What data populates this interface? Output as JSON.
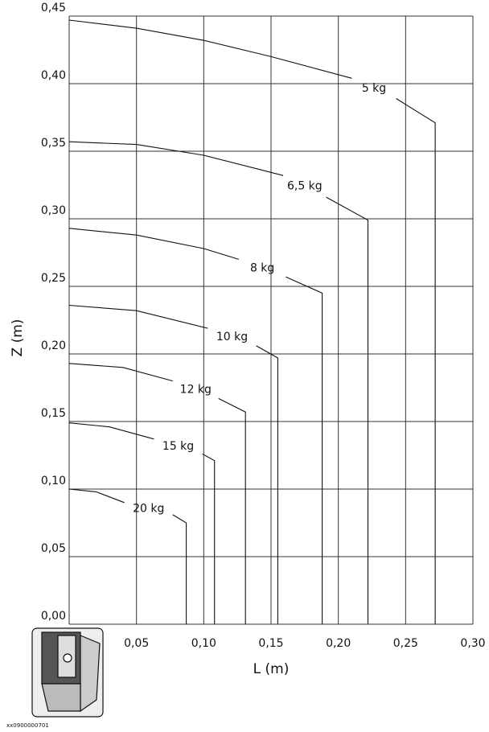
{
  "chart_data": {
    "type": "line",
    "x_label": "L (m)",
    "y_label": "Z (m)",
    "caption": "xx0900000701",
    "xlim": [
      0,
      0.3
    ],
    "ylim": [
      0,
      0.45
    ],
    "grid": true,
    "xticks": [
      {
        "value": 0.05,
        "label": "0,05"
      },
      {
        "value": 0.1,
        "label": "0,10"
      },
      {
        "value": 0.15,
        "label": "0,15"
      },
      {
        "value": 0.2,
        "label": "0,20"
      },
      {
        "value": 0.25,
        "label": "0,25"
      },
      {
        "value": 0.3,
        "label": "0,30"
      }
    ],
    "yticks": [
      {
        "value": 0,
        "label": "0,00"
      },
      {
        "value": 0.05,
        "label": "0,05"
      },
      {
        "value": 0.1,
        "label": "0,10"
      },
      {
        "value": 0.15,
        "label": "0,15"
      },
      {
        "value": 0.2,
        "label": "0,20"
      },
      {
        "value": 0.25,
        "label": "0,25"
      },
      {
        "value": 0.3,
        "label": "0,30"
      },
      {
        "value": 0.35,
        "label": "0,35"
      },
      {
        "value": 0.4,
        "label": "0,40"
      },
      {
        "value": 0.45,
        "label": "0,45"
      }
    ],
    "series": [
      {
        "name": "5 kg",
        "color": "#111111",
        "x": [
          0,
          0.05,
          0.1,
          0.15,
          0.21,
          null,
          0.243,
          0.272,
          0.272
        ],
        "values": [
          0.447,
          0.441,
          0.432,
          0.42,
          0.404,
          null,
          0.389,
          0.371,
          0
        ]
      },
      {
        "name": "6,5 kg",
        "color": "#111111",
        "x": [
          0,
          0.05,
          0.1,
          0.159,
          null,
          0.191,
          0.222,
          0.222
        ],
        "values": [
          0.357,
          0.355,
          0.347,
          0.332,
          null,
          0.316,
          0.299,
          0
        ]
      },
      {
        "name": "8 kg",
        "color": "#111111",
        "x": [
          0,
          0.05,
          0.1,
          0.126,
          null,
          0.161,
          0.188,
          0.188
        ],
        "values": [
          0.293,
          0.288,
          0.278,
          0.27,
          null,
          0.257,
          0.245,
          0
        ]
      },
      {
        "name": "10 kg",
        "color": "#111111",
        "x": [
          0,
          0.05,
          0.103,
          null,
          0.139,
          0.155,
          0.155
        ],
        "values": [
          0.236,
          0.232,
          0.219,
          null,
          0.206,
          0.197,
          0
        ]
      },
      {
        "name": "12 kg",
        "color": "#111111",
        "x": [
          0,
          0.04,
          0.077,
          null,
          0.111,
          0.131,
          0.131
        ],
        "values": [
          0.193,
          0.19,
          0.18,
          null,
          0.167,
          0.157,
          0
        ]
      },
      {
        "name": "15 kg",
        "color": "#111111",
        "x": [
          0,
          0.03,
          0.063,
          null,
          0.099,
          0.108,
          0.108
        ],
        "values": [
          0.149,
          0.146,
          0.137,
          null,
          0.126,
          0.121,
          0
        ]
      },
      {
        "name": "20 kg",
        "color": "#111111",
        "x": [
          0,
          0.02,
          0.041,
          null,
          0.077,
          0.087,
          0.087
        ],
        "values": [
          0.1,
          0.098,
          0.09,
          null,
          0.081,
          0.075,
          0
        ]
      }
    ]
  }
}
